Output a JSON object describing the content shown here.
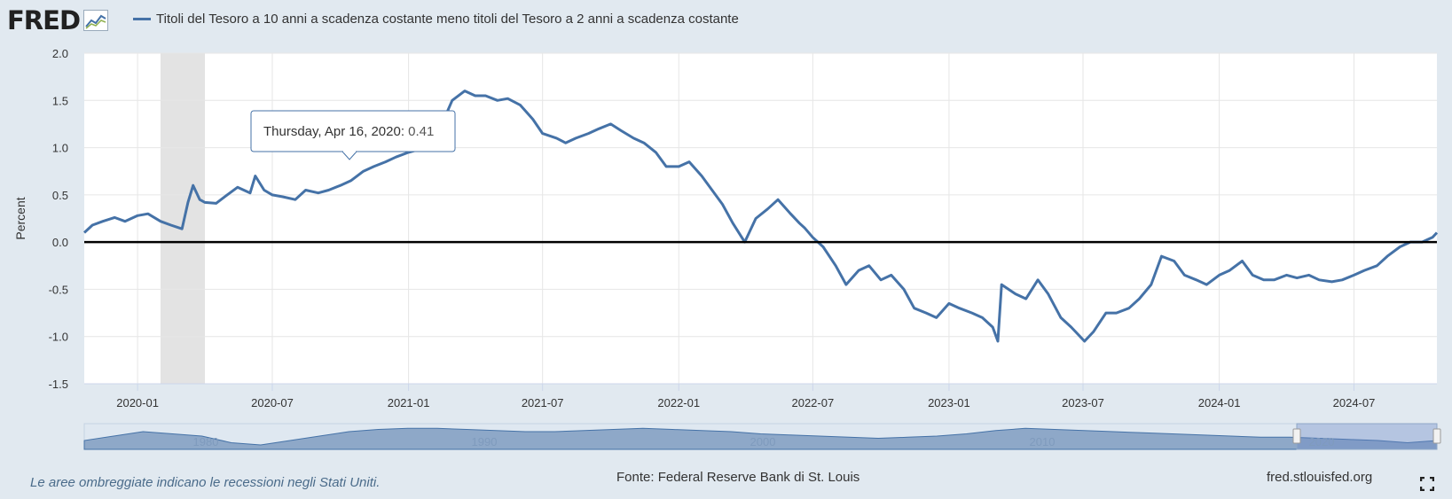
{
  "header": {
    "logo_text": "FRED",
    "series_title": "Titoli del Tesoro a 10 anni a scadenza costante meno titoli del Tesoro a 2 anni a scadenza costante"
  },
  "tooltip": {
    "label": "Thursday, Apr 16, 2020:",
    "value": "0.41"
  },
  "navigator": {
    "labels": [
      "1980",
      "1990",
      "2000",
      "2010",
      "2020"
    ]
  },
  "footer": {
    "recession_note": "Le aree ombreggiate indicano le recessioni negli Stati Uniti.",
    "source": "Fonte: Federal Reserve Bank di St. Louis",
    "site": "fred.stlouisfed.org"
  },
  "colors": {
    "line": "#4572a7",
    "recession": "#e3e3e3",
    "background": "#e1e9f0"
  },
  "chart_data": {
    "type": "line",
    "title": "Titoli del Tesoro a 10 anni a scadenza costante meno titoli del Tesoro a 2 anni a scadenza costante",
    "xlabel": "",
    "ylabel": "Percent",
    "ylim": [
      -1.5,
      2.0
    ],
    "yticks": [
      "-1.5",
      "-1.0",
      "-0.5",
      "0.0",
      "0.5",
      "1.0",
      "1.5",
      "2.0"
    ],
    "xticks": [
      "2020-01",
      "2020-07",
      "2021-01",
      "2021-07",
      "2022-01",
      "2022-07",
      "2023-01",
      "2023-07",
      "2024-01",
      "2024-07"
    ],
    "xrange": [
      "2019-10-21",
      "2024-10-21"
    ],
    "recession": [
      "2020-02-01",
      "2020-04-01"
    ],
    "zero_line": 0,
    "grid": true,
    "series": [
      {
        "x": [
          "2019-10-21",
          "2019-11-01",
          "2019-11-15",
          "2019-12-01",
          "2019-12-15",
          "2020-01-01",
          "2020-01-15",
          "2020-02-01",
          "2020-02-15",
          "2020-03-01",
          "2020-03-09",
          "2020-03-16",
          "2020-03-25",
          "2020-04-01",
          "2020-04-16",
          "2020-05-01",
          "2020-05-15",
          "2020-06-01",
          "2020-06-08",
          "2020-06-20",
          "2020-07-01",
          "2020-07-15",
          "2020-08-01",
          "2020-08-15",
          "2020-09-01",
          "2020-09-15",
          "2020-10-01",
          "2020-10-15",
          "2020-11-01",
          "2020-11-15",
          "2020-12-01",
          "2020-12-15",
          "2021-01-01",
          "2021-01-15",
          "2021-02-01",
          "2021-02-15",
          "2021-03-01",
          "2021-03-18",
          "2021-04-01",
          "2021-04-15",
          "2021-05-01",
          "2021-05-15",
          "2021-06-01",
          "2021-06-18",
          "2021-07-01",
          "2021-07-20",
          "2021-08-01",
          "2021-08-15",
          "2021-09-01",
          "2021-09-15",
          "2021-10-01",
          "2021-10-15",
          "2021-11-01",
          "2021-11-15",
          "2021-12-01",
          "2021-12-15",
          "2022-01-01",
          "2022-01-15",
          "2022-02-01",
          "2022-02-15",
          "2022-03-01",
          "2022-03-15",
          "2022-03-31",
          "2022-04-06",
          "2022-04-15",
          "2022-05-01",
          "2022-05-15",
          "2022-06-01",
          "2022-06-13",
          "2022-06-20",
          "2022-07-01",
          "2022-07-15",
          "2022-08-01",
          "2022-08-15",
          "2022-09-01",
          "2022-09-15",
          "2022-10-01",
          "2022-10-15",
          "2022-11-01",
          "2022-11-15",
          "2022-12-01",
          "2022-12-15",
          "2023-01-01",
          "2023-01-15",
          "2023-02-01",
          "2023-02-15",
          "2023-03-01",
          "2023-03-08",
          "2023-03-13",
          "2023-04-01",
          "2023-04-15",
          "2023-05-01",
          "2023-05-15",
          "2023-06-01",
          "2023-06-15",
          "2023-07-03",
          "2023-07-15",
          "2023-08-01",
          "2023-08-15",
          "2023-09-01",
          "2023-09-15",
          "2023-10-01",
          "2023-10-15",
          "2023-11-01",
          "2023-11-15",
          "2023-12-01",
          "2023-12-15",
          "2024-01-01",
          "2024-01-15",
          "2024-02-01",
          "2024-02-15",
          "2024-03-01",
          "2024-03-15",
          "2024-04-01",
          "2024-04-15",
          "2024-05-01",
          "2024-05-15",
          "2024-06-01",
          "2024-06-15",
          "2024-07-01",
          "2024-07-15",
          "2024-08-01",
          "2024-08-15",
          "2024-09-01",
          "2024-09-15",
          "2024-10-01",
          "2024-10-15",
          "2024-10-21"
        ],
        "values": [
          0.1,
          0.18,
          0.22,
          0.26,
          0.22,
          0.28,
          0.3,
          0.22,
          0.18,
          0.14,
          0.42,
          0.6,
          0.45,
          0.42,
          0.41,
          0.5,
          0.58,
          0.52,
          0.7,
          0.55,
          0.5,
          0.48,
          0.45,
          0.55,
          0.52,
          0.55,
          0.6,
          0.65,
          0.75,
          0.8,
          0.85,
          0.9,
          0.95,
          0.98,
          1.05,
          1.25,
          1.5,
          1.6,
          1.55,
          1.55,
          1.5,
          1.52,
          1.45,
          1.3,
          1.15,
          1.1,
          1.05,
          1.1,
          1.15,
          1.2,
          1.25,
          1.18,
          1.1,
          1.05,
          0.95,
          0.8,
          0.8,
          0.85,
          0.7,
          0.55,
          0.4,
          0.2,
          0.0,
          0.1,
          0.25,
          0.35,
          0.45,
          0.3,
          0.2,
          0.15,
          0.05,
          -0.05,
          -0.25,
          -0.45,
          -0.3,
          -0.25,
          -0.4,
          -0.35,
          -0.5,
          -0.7,
          -0.75,
          -0.8,
          -0.65,
          -0.7,
          -0.75,
          -0.8,
          -0.9,
          -1.05,
          -0.45,
          -0.55,
          -0.6,
          -0.4,
          -0.55,
          -0.8,
          -0.9,
          -1.05,
          -0.95,
          -0.75,
          -0.75,
          -0.7,
          -0.6,
          -0.45,
          -0.15,
          -0.2,
          -0.35,
          -0.4,
          -0.45,
          -0.35,
          -0.3,
          -0.2,
          -0.35,
          -0.4,
          -0.4,
          -0.35,
          -0.38,
          -0.35,
          -0.4,
          -0.42,
          -0.4,
          -0.35,
          -0.3,
          -0.25,
          -0.15,
          -0.05,
          0.0,
          0.0,
          0.05,
          0.1
        ]
      }
    ]
  }
}
